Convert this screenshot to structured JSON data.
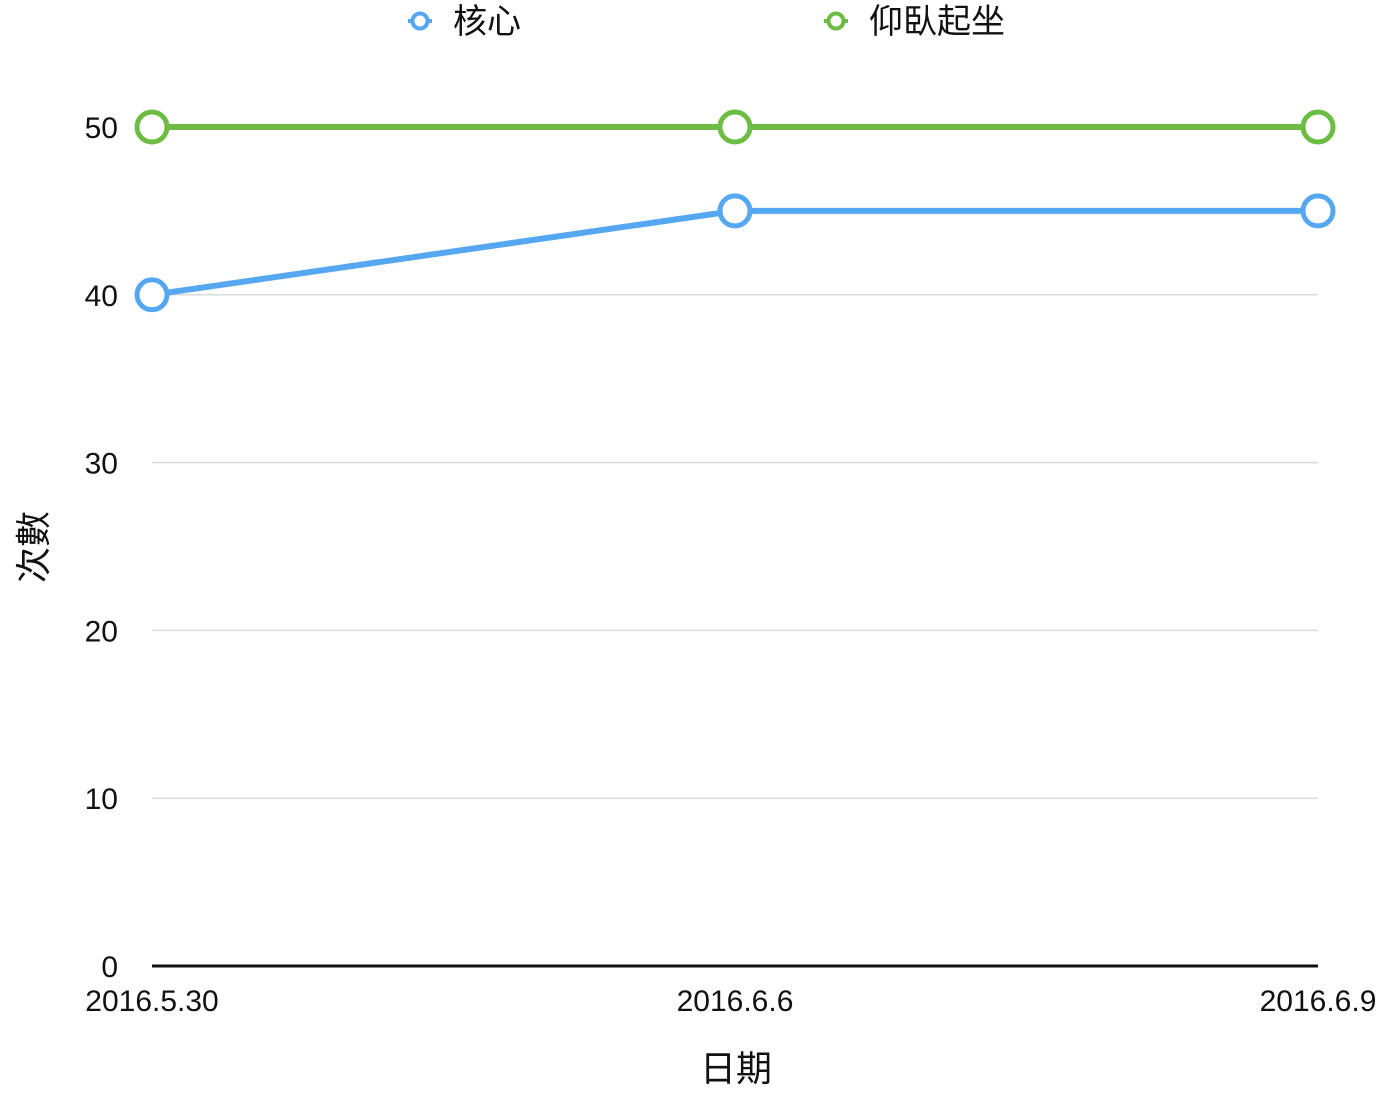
{
  "chart_data": {
    "type": "line",
    "categories": [
      "2016.5.30",
      "2016.6.6",
      "2016.6.9"
    ],
    "series": [
      {
        "name": "核心",
        "values": [
          40,
          45,
          45
        ],
        "color": "#55a7f2"
      },
      {
        "name": "仰臥起坐",
        "values": [
          50,
          50,
          50
        ],
        "color": "#6dbd45"
      }
    ],
    "xlabel": "日期",
    "ylabel": "次數",
    "ylim": [
      0,
      50
    ],
    "yticks": [
      0,
      10,
      20,
      30,
      40,
      50
    ],
    "grid": true,
    "legend_position": "top"
  }
}
